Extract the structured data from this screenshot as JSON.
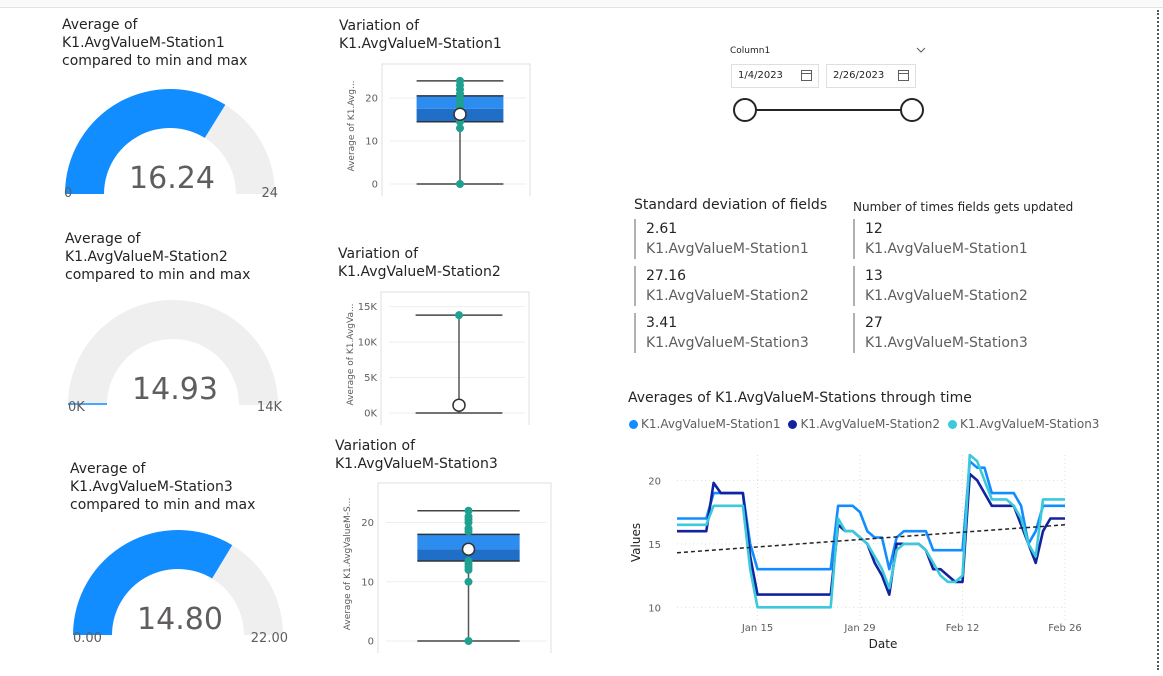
{
  "gauges": [
    {
      "title_lines": [
        "Average of",
        "K1.AvgValueM-Station1",
        "compared to min and max"
      ],
      "value": 16.24,
      "value_label": "16.24",
      "min_label": "0",
      "max_label": "24",
      "min": 0,
      "max": 24,
      "fill_color": "#118dff"
    },
    {
      "title_lines": [
        "Average of",
        "K1.AvgValueM-Station2",
        "compared to min and max"
      ],
      "value": 14.93,
      "value_label": "14.93",
      "min_label": "0K",
      "max_label": "14K",
      "min": 0,
      "max": 14000,
      "fill_color": "#118dff"
    },
    {
      "title_lines": [
        "Average of",
        "K1.AvgValueM-Station3",
        "compared to min and max"
      ],
      "value": 14.8,
      "value_label": "14.80",
      "min_label": "0.00",
      "max_label": "22.00",
      "min": 0,
      "max": 22,
      "fill_color": "#118dff"
    }
  ],
  "boxplots": [
    {
      "title_lines": [
        "Variation of",
        "K1.AvgValueM-Station1"
      ],
      "ylabel": "Average of K1.Avg...",
      "ticks": [
        {
          "v": 0,
          "label": "0"
        },
        {
          "v": 10,
          "label": "10"
        },
        {
          "v": 20,
          "label": "20"
        }
      ],
      "ymax": 27,
      "min": 0,
      "q1": 14.5,
      "median": 17.5,
      "q3": 20.5,
      "max": 24,
      "mean": 16.24,
      "points": [
        24,
        23,
        22,
        21,
        20,
        19,
        18,
        17.5,
        16,
        15,
        14.5,
        13,
        0
      ]
    },
    {
      "title_lines": [
        "Variation of",
        "K1.AvgValueM-Station2"
      ],
      "ylabel": "Average of K1.AvgVa...",
      "ticks": [
        {
          "v": 0,
          "label": "0K"
        },
        {
          "v": 5000,
          "label": "5K"
        },
        {
          "v": 10000,
          "label": "10K"
        },
        {
          "v": 15000,
          "label": "15K"
        }
      ],
      "ymax": 16500,
      "min": 0,
      "q1": 14,
      "median": 17,
      "q3": 19,
      "max": 13800,
      "mean": 1100,
      "points": [
        13800
      ]
    },
    {
      "title_lines": [
        "Variation of",
        "K1.AvgValueM-Station3"
      ],
      "ylabel": "Average of K1.AvgValueM-S...",
      "ticks": [
        {
          "v": 0,
          "label": "0"
        },
        {
          "v": 10,
          "label": "10"
        },
        {
          "v": 20,
          "label": "20"
        }
      ],
      "ymax": 26,
      "min": 0,
      "q1": 13.5,
      "median": 15.5,
      "q3": 18,
      "max": 22,
      "mean": 15.5,
      "points": [
        22,
        21,
        20.5,
        20,
        19,
        18.5,
        13.5,
        13,
        12.5,
        12,
        10,
        0
      ]
    }
  ],
  "slicer": {
    "title": "Column1",
    "start": "1/4/2023",
    "end": "2/26/2023"
  },
  "std_card": {
    "title": "Standard deviation of fields",
    "rows": [
      {
        "value": "2.61",
        "label": "K1.AvgValueM-Station1"
      },
      {
        "value": "27.16",
        "label": "K1.AvgValueM-Station2"
      },
      {
        "value": "3.41",
        "label": "K1.AvgValueM-Station3"
      }
    ]
  },
  "count_card": {
    "title": "Number of times fields gets updated",
    "rows": [
      {
        "value": "12",
        "label": "K1.AvgValueM-Station1"
      },
      {
        "value": "13",
        "label": "K1.AvgValueM-Station2"
      },
      {
        "value": "27",
        "label": "K1.AvgValueM-Station3"
      }
    ]
  },
  "line_chart": {
    "title": "Averages of K1.AvgValueM-Stations through time"
  },
  "chart_data": {
    "type": "line",
    "title": "Averages of K1.AvgValueM-Stations through time",
    "xlabel": "Date",
    "ylabel": "Values",
    "x_ticks": [
      "Jan 15",
      "Jan 29",
      "Feb 12",
      "Feb 26"
    ],
    "y_ticks": [
      10,
      15,
      20
    ],
    "ylim": [
      9,
      22
    ],
    "xrange_days": [
      0,
      53
    ],
    "x_tick_days": [
      11,
      25,
      39,
      53
    ],
    "grid": true,
    "legend": "top",
    "x_days": [
      0,
      1,
      2,
      3,
      4,
      5,
      6,
      7,
      8,
      9,
      10,
      11,
      12,
      13,
      14,
      15,
      16,
      17,
      18,
      19,
      20,
      21,
      22,
      23,
      24,
      25,
      26,
      27,
      28,
      29,
      30,
      31,
      32,
      33,
      34,
      35,
      36,
      37,
      38,
      39,
      40,
      41,
      42,
      43,
      44,
      45,
      46,
      47,
      48,
      49,
      50,
      51,
      52,
      53
    ],
    "series": [
      {
        "name": "K1.AvgValueM-Station1",
        "color": "#118dff",
        "values": [
          17,
          17,
          17,
          17,
          17,
          19,
          19,
          19,
          19,
          19,
          15,
          13,
          13,
          13,
          13,
          13,
          13,
          13,
          13,
          13,
          13,
          13,
          18,
          18,
          18,
          17.5,
          16,
          15.5,
          15.5,
          13,
          15.5,
          16,
          16,
          16,
          16,
          14.5,
          14.5,
          14.5,
          14.5,
          14.5,
          21.5,
          21,
          21,
          19,
          19,
          19,
          19,
          18,
          15,
          16,
          18,
          18,
          18,
          18
        ]
      },
      {
        "name": "K1.AvgValueM-Station2",
        "color": "#12239e",
        "values": [
          16,
          16,
          16,
          16,
          16,
          19.8,
          19,
          19,
          19,
          19,
          14,
          11,
          11,
          11,
          11,
          11,
          11,
          11,
          11,
          11,
          11,
          11,
          16.5,
          16,
          16,
          15.5,
          15,
          13.5,
          12.5,
          11,
          15,
          15,
          15,
          15,
          14.5,
          13,
          13,
          12.5,
          12,
          12,
          20.5,
          20,
          19,
          18,
          18,
          18,
          18,
          16.5,
          15,
          13.5,
          16,
          17,
          17,
          17
        ]
      },
      {
        "name": "K1.AvgValueM-Station3",
        "color": "#3bc9db",
        "values": [
          16.5,
          16.5,
          16.5,
          16.5,
          16.5,
          18,
          18,
          18,
          18,
          18,
          13,
          10,
          10,
          10,
          10,
          10,
          10,
          10,
          10,
          10,
          10,
          10,
          17,
          16,
          16,
          15.5,
          15,
          14,
          13,
          11.5,
          14.5,
          15,
          15,
          15,
          14.5,
          13.5,
          12.5,
          12,
          12,
          12.5,
          22,
          21.5,
          20,
          18.5,
          18.5,
          18.5,
          18,
          17,
          15,
          14,
          18.5,
          18.5,
          18.5,
          18.5
        ]
      }
    ],
    "trend": {
      "start": 14.3,
      "end": 16.5
    }
  }
}
